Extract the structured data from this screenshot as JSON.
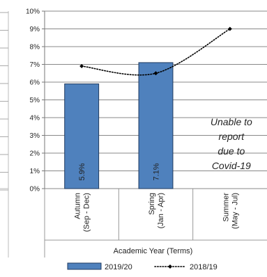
{
  "chart_data": {
    "type": "bar",
    "categories": [
      "Autumn\n(Sep - Dec)",
      "Spring\n(Jan - Apr)",
      "Summer\n(May - Jul)"
    ],
    "ylim": [
      0,
      10
    ],
    "y_ticks": [
      "0%",
      "1%",
      "2%",
      "3%",
      "4%",
      "5%",
      "6%",
      "7%",
      "8%",
      "9%",
      "10%"
    ],
    "xlabel": "Academic Year (Terms)",
    "ylabel": "",
    "grid": true,
    "legend_position": "bottom",
    "series": [
      {
        "name": "2019/20",
        "type": "bar",
        "values": [
          5.9,
          7.1,
          null
        ],
        "data_labels": [
          "5.9%",
          "7.1%",
          ""
        ],
        "color": "#4f81bd"
      },
      {
        "name": "2018/19",
        "type": "line",
        "style": "dotted",
        "marker": "diamond",
        "values": [
          6.9,
          6.5,
          9.0
        ],
        "color": "#000000"
      }
    ],
    "annotation": "Unable to\nreport\ndue to\nCovid-19"
  }
}
